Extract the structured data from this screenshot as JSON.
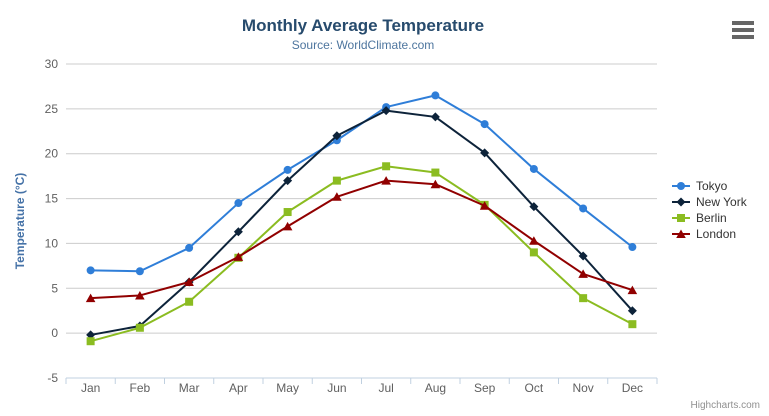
{
  "header": {
    "title": "Monthly Average Temperature",
    "subtitle": "Source: WorldClimate.com"
  },
  "chart_data": {
    "type": "line",
    "title": "Monthly Average Temperature",
    "subtitle": "Source: WorldClimate.com",
    "categories": [
      "Jan",
      "Feb",
      "Mar",
      "Apr",
      "May",
      "Jun",
      "Jul",
      "Aug",
      "Sep",
      "Oct",
      "Nov",
      "Dec"
    ],
    "xlabel": "",
    "ylabel": "Temperature (°C)",
    "ylim": [
      -5,
      30
    ],
    "ytick_interval": 5,
    "grid": true,
    "legend_position": "right-middle",
    "series": [
      {
        "name": "Tokyo",
        "color": "#2f7ed8",
        "marker": "circle",
        "values": [
          7.0,
          6.9,
          9.5,
          14.5,
          18.2,
          21.5,
          25.2,
          26.5,
          23.3,
          18.3,
          13.9,
          9.6
        ]
      },
      {
        "name": "New York",
        "color": "#0d233a",
        "marker": "diamond",
        "values": [
          -0.2,
          0.8,
          5.7,
          11.3,
          17.0,
          22.0,
          24.8,
          24.1,
          20.1,
          14.1,
          8.6,
          2.5
        ]
      },
      {
        "name": "Berlin",
        "color": "#8bbc21",
        "marker": "square",
        "values": [
          -0.9,
          0.6,
          3.5,
          8.4,
          13.5,
          17.0,
          18.6,
          17.9,
          14.3,
          9.0,
          3.9,
          1.0
        ]
      },
      {
        "name": "London",
        "color": "#910000",
        "marker": "triangle",
        "values": [
          3.9,
          4.2,
          5.7,
          8.5,
          11.9,
          15.2,
          17.0,
          16.6,
          14.2,
          10.3,
          6.6,
          4.8
        ]
      }
    ]
  },
  "colors": {
    "title": "#274b6d",
    "subtitle": "#4d759e",
    "yaxis_title": "#4572a7",
    "tick_label": "#606060",
    "gridline": "#cccccc",
    "axis_line": "#c0d0e0",
    "legend_text": "#333333",
    "credit": "#909090",
    "menu_icon": "#666666"
  },
  "credits": {
    "text": "Highcharts.com"
  },
  "menu": {
    "icon": "hamburger-icon"
  }
}
